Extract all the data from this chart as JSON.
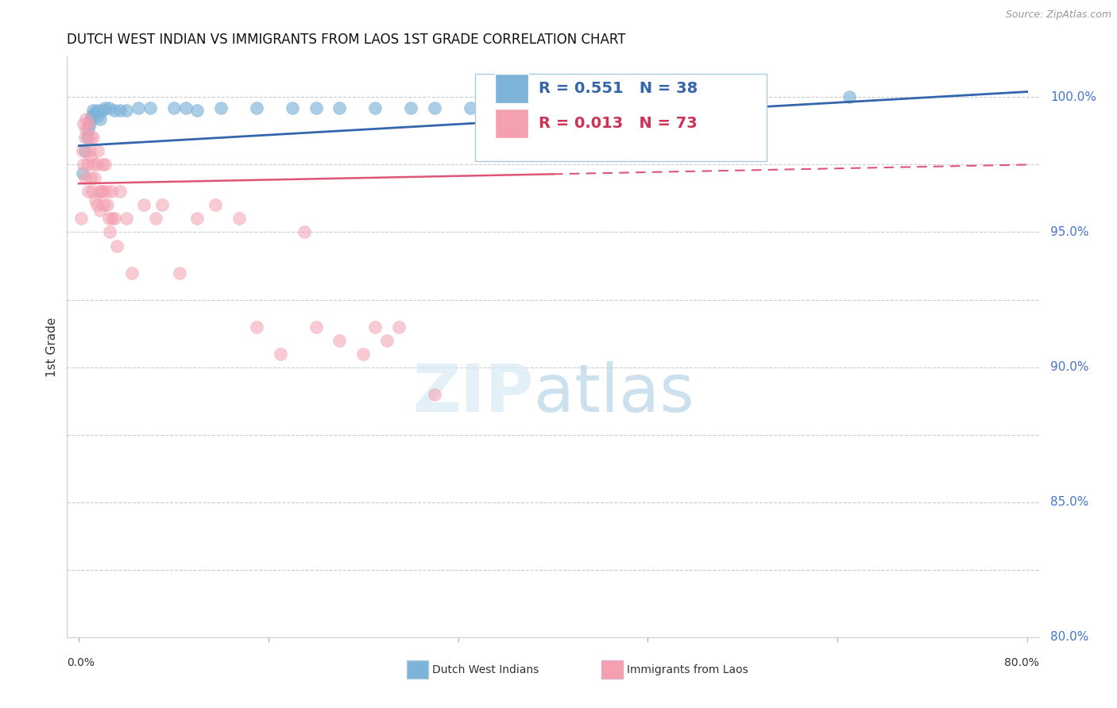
{
  "title": "DUTCH WEST INDIAN VS IMMIGRANTS FROM LAOS 1ST GRADE CORRELATION CHART",
  "source": "Source: ZipAtlas.com",
  "ylabel": "1st Grade",
  "right_ytick_labels": [
    "100.0%",
    "95.0%",
    "90.0%",
    "85.0%",
    "80.0%"
  ],
  "right_ytick_vals": [
    100.0,
    95.0,
    90.0,
    85.0,
    80.0
  ],
  "legend_blue_r": "R = 0.551",
  "legend_blue_n": "N = 38",
  "legend_pink_r": "R = 0.013",
  "legend_pink_n": "N = 73",
  "legend_blue_label": "Dutch West Indians",
  "legend_pink_label": "Immigrants from Laos",
  "blue_color": "#7EB3D8",
  "pink_color": "#F4A0B0",
  "trend_blue_color": "#3366AA",
  "trend_pink_color": "#DD5577",
  "blue_dots_x": [
    0.3,
    0.5,
    0.7,
    0.8,
    0.9,
    1.0,
    1.1,
    1.2,
    1.3,
    1.5,
    1.6,
    1.8,
    2.0,
    2.2,
    2.5,
    3.0,
    3.5,
    4.0,
    5.0,
    6.0,
    8.0,
    9.0,
    10.0,
    12.0,
    15.0,
    18.0,
    20.0,
    22.0,
    25.0,
    28.0,
    30.0,
    33.0,
    36.0,
    38.0,
    42.0,
    45.0,
    50.0,
    65.0
  ],
  "blue_dots_y": [
    97.2,
    98.0,
    98.5,
    98.8,
    99.0,
    99.2,
    99.3,
    99.5,
    99.4,
    99.5,
    99.3,
    99.2,
    99.5,
    99.6,
    99.6,
    99.5,
    99.5,
    99.5,
    99.6,
    99.6,
    99.6,
    99.6,
    99.5,
    99.6,
    99.6,
    99.6,
    99.6,
    99.6,
    99.6,
    99.6,
    99.6,
    99.6,
    99.6,
    99.6,
    99.6,
    99.6,
    99.6,
    100.0
  ],
  "pink_dots_x": [
    0.2,
    0.3,
    0.4,
    0.4,
    0.5,
    0.5,
    0.6,
    0.6,
    0.7,
    0.8,
    0.8,
    0.9,
    1.0,
    1.0,
    1.0,
    1.1,
    1.2,
    1.2,
    1.3,
    1.4,
    1.5,
    1.5,
    1.6,
    1.7,
    1.8,
    1.9,
    2.0,
    2.0,
    2.1,
    2.2,
    2.3,
    2.4,
    2.5,
    2.6,
    2.7,
    2.8,
    3.0,
    3.2,
    3.5,
    4.0,
    4.5,
    5.5,
    6.5,
    7.0,
    8.5,
    10.0,
    11.5,
    13.5,
    15.0,
    17.0,
    19.0,
    20.0,
    22.0,
    24.0,
    25.0,
    26.0,
    27.0,
    30.0
  ],
  "pink_dots_y": [
    95.5,
    98.0,
    99.0,
    97.5,
    98.5,
    97.0,
    99.2,
    98.8,
    97.5,
    99.0,
    96.5,
    98.0,
    98.5,
    97.8,
    97.0,
    96.5,
    98.5,
    97.5,
    97.0,
    96.2,
    97.5,
    96.0,
    98.0,
    96.5,
    95.8,
    96.5,
    97.5,
    96.5,
    96.0,
    97.5,
    96.5,
    96.0,
    95.5,
    95.0,
    96.5,
    95.5,
    95.5,
    94.5,
    96.5,
    95.5,
    93.5,
    96.0,
    95.5,
    96.0,
    93.5,
    95.5,
    96.0,
    95.5,
    91.5,
    90.5,
    95.0,
    91.5,
    91.0,
    90.5,
    91.5,
    91.0,
    91.5,
    89.0
  ],
  "pink_trend_x0": 0.0,
  "pink_trend_y0": 96.8,
  "pink_trend_x1": 80.0,
  "pink_trend_y1": 97.5,
  "pink_trend_solid_end": 40.0,
  "blue_trend_x0": 0.0,
  "blue_trend_y0": 98.2,
  "blue_trend_x1": 80.0,
  "blue_trend_y1": 100.2,
  "xmin": 0.0,
  "xmax": 80.0,
  "ymin": 80.0,
  "ymax": 101.5,
  "grid_vals": [
    100.0,
    97.5,
    95.0,
    92.5,
    90.0,
    87.5,
    85.0,
    82.5
  ],
  "xtick_positions": [
    0,
    16,
    32,
    48,
    64,
    80
  ]
}
